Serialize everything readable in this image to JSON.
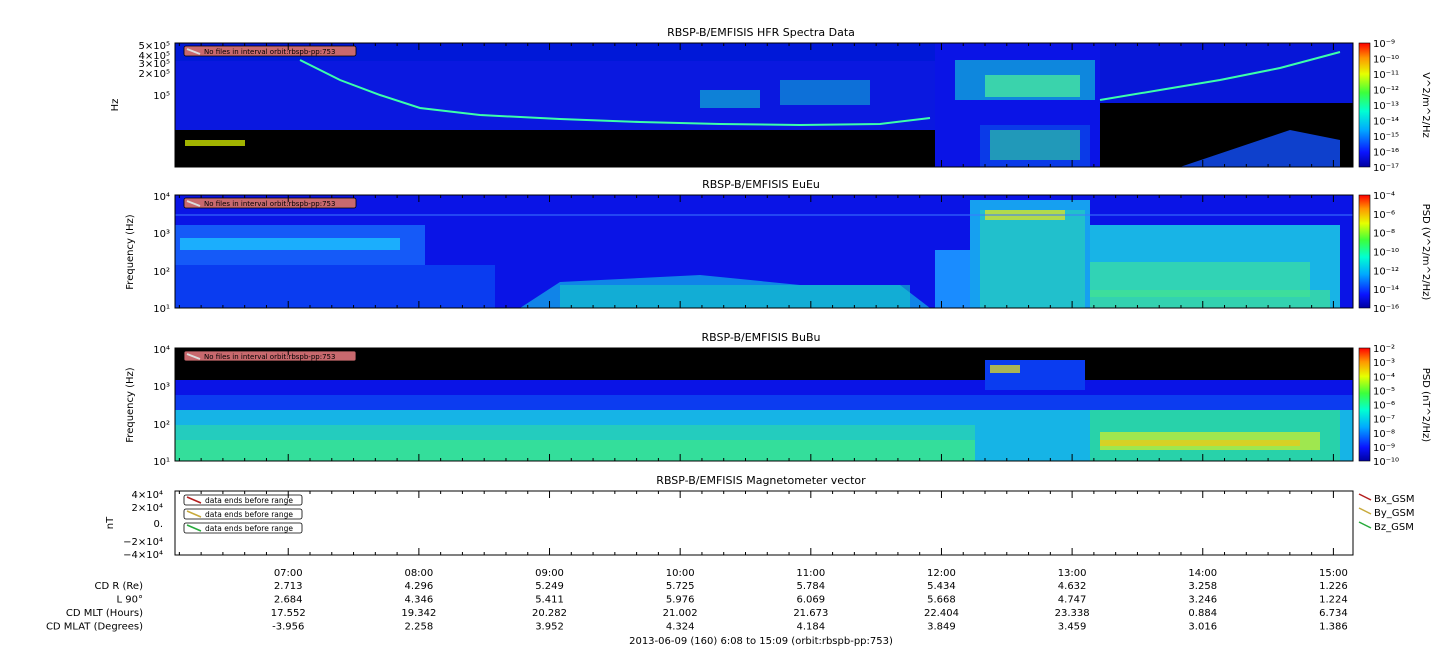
{
  "colors": {
    "background": "#000000",
    "spectrogram_base": "#0a14e6",
    "frame": "#000000",
    "note_box": "#c8696e",
    "bx": "#b41e1e",
    "by": "#c8aa3c",
    "bz": "#28aa3c"
  },
  "footer": {
    "title": "2013-06-09 (160) 6:08 to 15:09 (orbit:rbspb-pp:753)"
  },
  "chart_data": [
    {
      "type": "heatmap",
      "title": "RBSP-B/EMFISIS  HFR Spectra Data",
      "ylabel": "Hz",
      "y_scale": "log",
      "y_ticks": [
        "5×10⁵",
        "4×10⁵",
        "3×10⁵",
        "2×10⁵",
        "10⁵"
      ],
      "colorbar": {
        "label": "V^2/m^2/Hz",
        "scale": "log",
        "ticks": [
          "10⁻⁹",
          "10⁻¹⁰",
          "10⁻¹¹",
          "10⁻¹²",
          "10⁻¹³",
          "10⁻¹⁴",
          "10⁻¹⁵",
          "10⁻¹⁶",
          "10⁻¹⁷"
        ]
      },
      "note": "No files in interval orbit:rbspb-pp:753"
    },
    {
      "type": "heatmap",
      "title": "RBSP-B/EMFISIS  EuEu",
      "ylabel": "Frequency (Hz)",
      "y_scale": "log",
      "y_ticks": [
        "10⁴",
        "10³",
        "10²",
        "10¹"
      ],
      "colorbar": {
        "label": "PSD (V^2/m^2/Hz)",
        "scale": "log",
        "ticks": [
          "10⁻⁴",
          "10⁻⁶",
          "10⁻⁸",
          "10⁻¹⁰",
          "10⁻¹²",
          "10⁻¹⁴",
          "10⁻¹⁶"
        ]
      },
      "note": "No files in interval orbit:rbspb-pp:753"
    },
    {
      "type": "heatmap",
      "title": "RBSP-B/EMFISIS  BuBu",
      "ylabel": "Frequency (Hz)",
      "y_scale": "log",
      "y_ticks": [
        "10⁴",
        "10³",
        "10²",
        "10¹"
      ],
      "colorbar": {
        "label": "PSD (nT^2/Hz)",
        "scale": "log",
        "ticks": [
          "10⁻²",
          "10⁻³",
          "10⁻⁴",
          "10⁻⁵",
          "10⁻⁶",
          "10⁻⁷",
          "10⁻⁸",
          "10⁻⁹",
          "10⁻¹⁰"
        ]
      },
      "note": "No files in interval orbit:rbspb-pp:753"
    },
    {
      "type": "line",
      "title": "RBSP-B/EMFISIS  Magnetometer vector",
      "ylabel": "nT",
      "y_ticks": [
        "4×10⁴",
        "2×10⁴",
        "0.",
        "−2×10⁴",
        "−4×10⁴"
      ],
      "ylim": [
        -40000,
        40000
      ],
      "series": [
        {
          "name": "Bx_GSM",
          "note": "data ends before range"
        },
        {
          "name": "By_GSM",
          "note": "data ends before range"
        },
        {
          "name": "Bz_GSM",
          "note": "data ends before range"
        }
      ],
      "legend": "right"
    }
  ],
  "time_axis": {
    "labels": [
      "07:00",
      "08:00",
      "09:00",
      "10:00",
      "11:00",
      "12:00",
      "13:00",
      "14:00",
      "15:00"
    ],
    "ephemeris": [
      {
        "label": "CD R (Re)",
        "values": [
          "2.713",
          "4.296",
          "5.249",
          "5.725",
          "5.784",
          "5.434",
          "4.632",
          "3.258",
          "1.226"
        ]
      },
      {
        "label": "L 90°",
        "values": [
          "2.684",
          "4.346",
          "5.411",
          "5.976",
          "6.069",
          "5.668",
          "4.747",
          "3.246",
          "1.224"
        ]
      },
      {
        "label": "CD MLT (Hours)",
        "values": [
          "17.552",
          "19.342",
          "20.282",
          "21.002",
          "21.673",
          "22.404",
          "23.338",
          "0.884",
          "6.734"
        ]
      },
      {
        "label": "CD MLAT (Degrees)",
        "values": [
          "-3.956",
          "2.258",
          "3.952",
          "4.324",
          "4.184",
          "3.849",
          "3.459",
          "3.016",
          "1.386"
        ]
      }
    ]
  }
}
